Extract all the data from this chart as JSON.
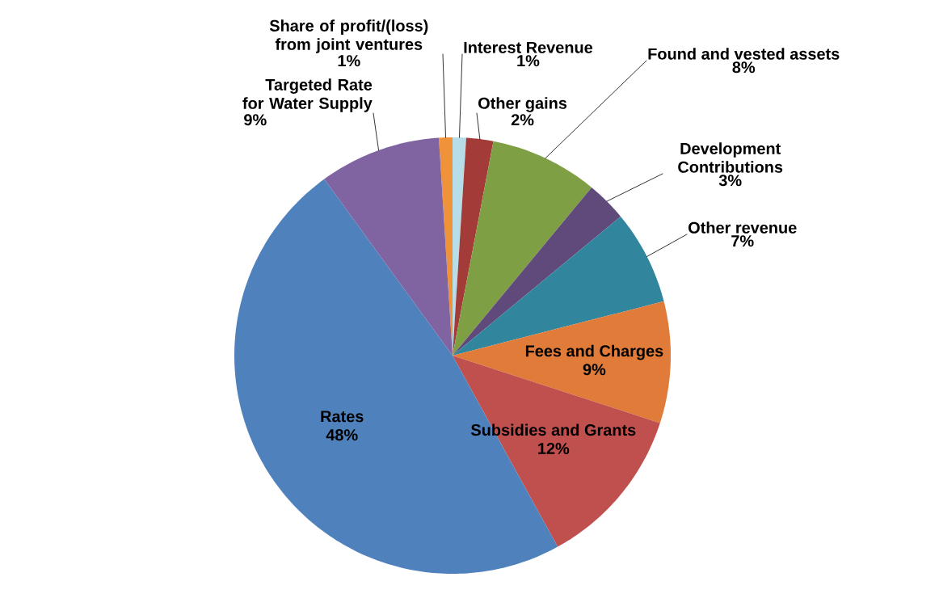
{
  "chart_data": {
    "type": "pie",
    "categories": [
      "Share of profit/(loss) from joint ventures",
      "Interest Revenue",
      "Other gains",
      "Found and vested assets",
      "Development Contributions",
      "Other revenue",
      "Fees and Charges",
      "Subsidies and Grants",
      "Rates",
      "Targeted Rate for Water Supply"
    ],
    "values": [
      1,
      1,
      2,
      8,
      3,
      7,
      9,
      12,
      48,
      9
    ],
    "value_labels": [
      "1%",
      "1%",
      "2%",
      "8%",
      "3%",
      "7%",
      "9%",
      "12%",
      "48%",
      "9%"
    ],
    "colors": [
      "#f0923a",
      "#b7dde8",
      "#a33b38",
      "#7f9f45",
      "#604a7b",
      "#31859c",
      "#e07b39",
      "#c0504d",
      "#4f81bd",
      "#8064a2"
    ]
  }
}
